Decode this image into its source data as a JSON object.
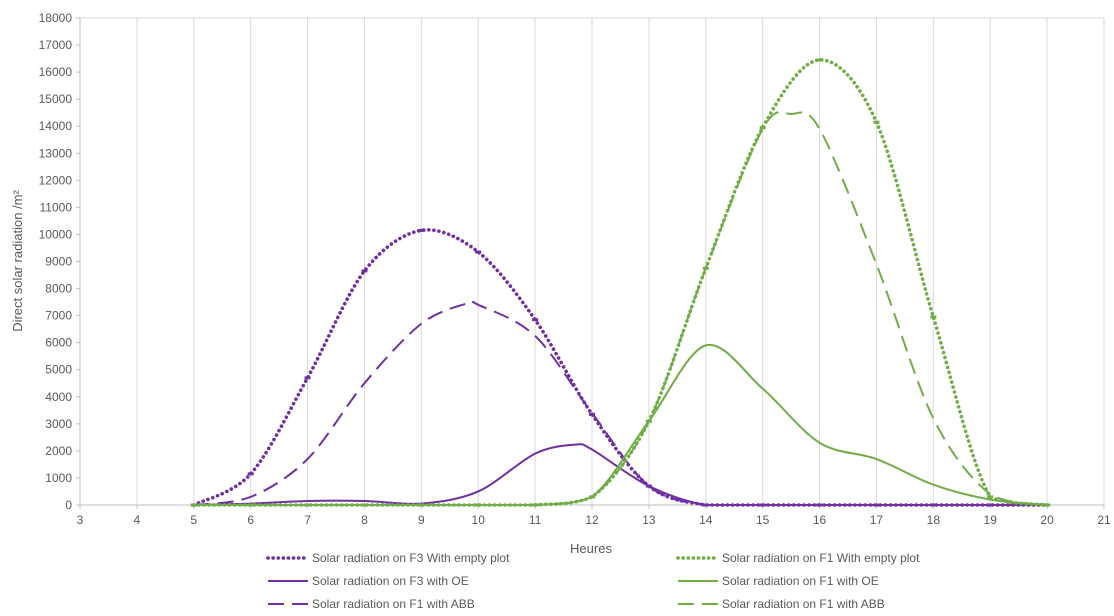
{
  "chart_data": {
    "type": "line",
    "title": "",
    "xlabel": "Heures",
    "ylabel": "Direct solar radiation /m²",
    "xlim": [
      3,
      21
    ],
    "ylim": [
      0,
      18000
    ],
    "x_ticks": [
      3,
      4,
      5,
      6,
      7,
      8,
      9,
      10,
      11,
      12,
      13,
      14,
      15,
      16,
      17,
      18,
      19,
      20,
      21
    ],
    "y_ticks": [
      0,
      1000,
      2000,
      3000,
      4000,
      5000,
      6000,
      7000,
      8000,
      9000,
      10000,
      11000,
      12000,
      13000,
      14000,
      15000,
      16000,
      17000,
      18000
    ],
    "grid": "vertical",
    "legend_position": "bottom",
    "series": [
      {
        "name": "Solar radiation on F3  With empty plot",
        "color": "#7030A0",
        "style": "dotted",
        "x": [
          5,
          6,
          7,
          8,
          9,
          10,
          11,
          12,
          13,
          14,
          15,
          16,
          17,
          18,
          19,
          20
        ],
        "y": [
          0,
          1150,
          4700,
          8650,
          10150,
          9350,
          6850,
          3350,
          700,
          0,
          0,
          0,
          0,
          0,
          0,
          0
        ]
      },
      {
        "name": "Solar radiation on F3 with OE",
        "color": "#7030A0",
        "style": "solid",
        "x": [
          5,
          6,
          7,
          8,
          9,
          10,
          11,
          11.7,
          12,
          13,
          14,
          15,
          16,
          17,
          18,
          19,
          20
        ],
        "y": [
          0,
          50,
          150,
          150,
          50,
          500,
          1900,
          2230,
          2050,
          700,
          0,
          0,
          0,
          0,
          0,
          0,
          0
        ]
      },
      {
        "name": "Solar radiation on F1 with ABB",
        "color": "#7030A0",
        "style": "dashed",
        "x": [
          5,
          6,
          7,
          8,
          9,
          9.8,
          10,
          11,
          12,
          13,
          14,
          15,
          16,
          17,
          18,
          19,
          20
        ],
        "y": [
          0,
          300,
          1700,
          4500,
          6700,
          7450,
          7400,
          6250,
          3400,
          700,
          0,
          0,
          0,
          0,
          0,
          0,
          0
        ]
      },
      {
        "name": "Solar radiation on F1 With empty plot",
        "color": "#70AD47",
        "style": "dotted",
        "x": [
          5,
          6,
          7,
          8,
          9,
          10,
          11,
          12,
          13,
          14,
          15,
          16,
          17,
          18,
          19,
          20
        ],
        "y": [
          0,
          0,
          0,
          0,
          0,
          0,
          0,
          300,
          3100,
          8750,
          13950,
          16450,
          14150,
          6950,
          300,
          0
        ]
      },
      {
        "name": "Solar radiation on F1 with OE",
        "color": "#70AD47",
        "style": "solid",
        "x": [
          5,
          6,
          7,
          8,
          9,
          10,
          11,
          12,
          13,
          14,
          15,
          16,
          17,
          18,
          19,
          20
        ],
        "y": [
          0,
          0,
          0,
          0,
          0,
          0,
          0,
          300,
          3100,
          5900,
          4300,
          2300,
          1700,
          750,
          200,
          0
        ]
      },
      {
        "name": "Solar radiation on F1 with ABB",
        "color": "#70AD47",
        "style": "dashed",
        "x": [
          5,
          6,
          7,
          8,
          9,
          10,
          11,
          12,
          13,
          14,
          15,
          15.5,
          16,
          17,
          18,
          19,
          20
        ],
        "y": [
          0,
          0,
          0,
          0,
          0,
          0,
          0,
          300,
          3100,
          8750,
          13900,
          14450,
          13900,
          8900,
          3200,
          400,
          0
        ]
      }
    ]
  }
}
